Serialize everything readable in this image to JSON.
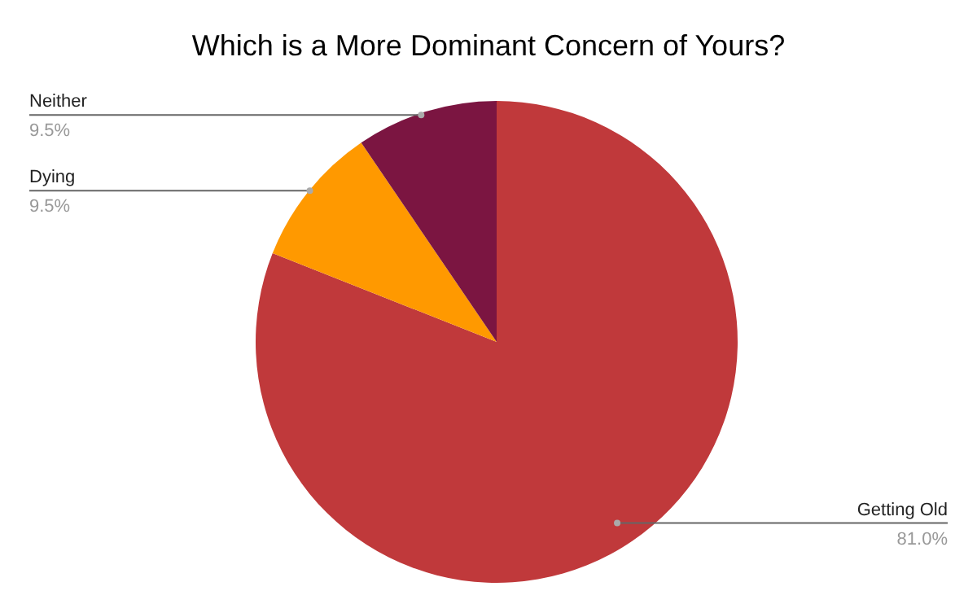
{
  "chart_data": {
    "type": "pie",
    "title": "Which is a More Dominant Concern of Yours?",
    "categories": [
      "Getting Old",
      "Dying",
      "Neither"
    ],
    "values": [
      81.0,
      9.5,
      9.5
    ],
    "value_labels": [
      "81.0%",
      "9.5%",
      "9.5%"
    ],
    "colors": [
      "#c0393b",
      "#ff9900",
      "#7b1541"
    ],
    "legend": false
  }
}
